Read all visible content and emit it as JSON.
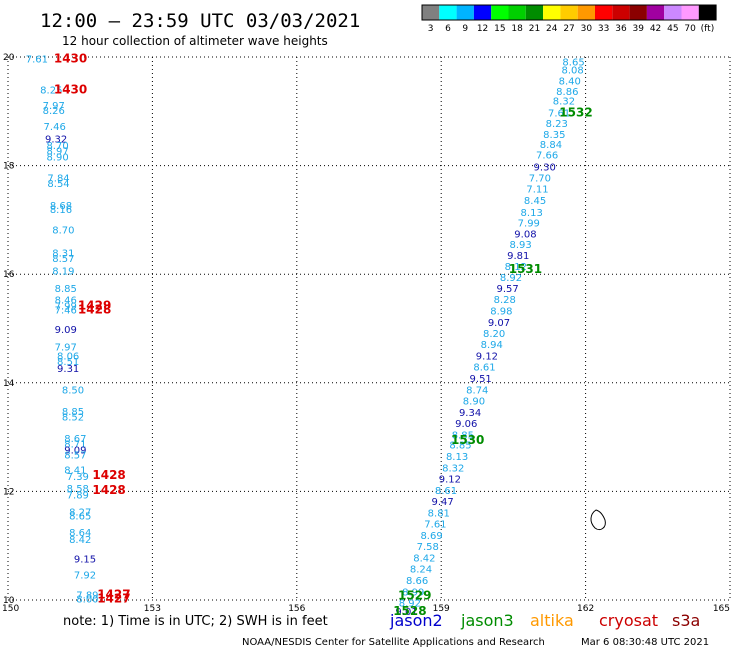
{
  "header": {
    "title": "12:00 – 23:59 UTC 03/03/2021",
    "subtitle": "12 hour collection of altimeter wave heights"
  },
  "legend": {
    "unit": "(ft)",
    "bins": [
      {
        "label": "3",
        "color": "#808080"
      },
      {
        "label": "6",
        "color": "#00ffff"
      },
      {
        "label": "9",
        "color": "#00b4ff"
      },
      {
        "label": "12",
        "color": "#0000ff"
      },
      {
        "label": "15",
        "color": "#00ff00"
      },
      {
        "label": "18",
        "color": "#00d000"
      },
      {
        "label": "21",
        "color": "#008c00"
      },
      {
        "label": "24",
        "color": "#ffff00"
      },
      {
        "label": "27",
        "color": "#ffcc00"
      },
      {
        "label": "30",
        "color": "#ff9900"
      },
      {
        "label": "33",
        "color": "#ff0000"
      },
      {
        "label": "36",
        "color": "#cc0000"
      },
      {
        "label": "39",
        "color": "#8b0000"
      },
      {
        "label": "42",
        "color": "#a000a0"
      },
      {
        "label": "45",
        "color": "#cc88ff"
      },
      {
        "label": "70",
        "color": "#ff99ff"
      },
      {
        "label": "",
        "color": "#000000"
      }
    ]
  },
  "footer": {
    "note": "note: 1) Time is in UTC; 2) SWH is in feet",
    "missions": [
      {
        "name": "jason2",
        "color": "#0000cc"
      },
      {
        "name": "jason3",
        "color": "#008c00"
      },
      {
        "name": "altika",
        "color": "#ff9900"
      },
      {
        "name": "cryosat",
        "color": "#cc0000"
      },
      {
        "name": "s3a",
        "color": "#8b0000"
      }
    ],
    "credit": "NOAA/NESDIS Center for Satellite Applications and Research",
    "timestamp": "Mar  6 08:30:48 UTC 2021"
  },
  "chart_data": {
    "type": "scatter",
    "xlim": [
      150,
      165
    ],
    "ylim": [
      10,
      20
    ],
    "x_ticks": [
      "150",
      "153",
      "156",
      "159",
      "162",
      "165"
    ],
    "y_ticks": [
      "10",
      "12",
      "14",
      "16",
      "18",
      "20"
    ],
    "grid": true,
    "colors": {
      "light": "#1ea8e8",
      "dark": "#1010a8",
      "jason3": "#008c00",
      "cryosat": "#dd0000"
    },
    "western_track": [
      {
        "x": 150.6,
        "y": 19.97,
        "v": "7.61",
        "c": "light"
      },
      {
        "x": 150.9,
        "y": 19.4,
        "v": "8.25",
        "c": "light"
      },
      {
        "x": 150.95,
        "y": 19.12,
        "v": "7.97",
        "c": "light"
      },
      {
        "x": 150.95,
        "y": 19.02,
        "v": "8.26",
        "c": "light"
      },
      {
        "x": 150.97,
        "y": 18.73,
        "v": "7.46",
        "c": "light"
      },
      {
        "x": 151.0,
        "y": 18.5,
        "v": "9.32",
        "c": "dark"
      },
      {
        "x": 151.03,
        "y": 18.38,
        "v": "8.70",
        "c": "light"
      },
      {
        "x": 151.03,
        "y": 18.28,
        "v": "8.97",
        "c": "light"
      },
      {
        "x": 151.03,
        "y": 18.17,
        "v": "8.90",
        "c": "light"
      },
      {
        "x": 151.05,
        "y": 17.78,
        "v": "7.84",
        "c": "light"
      },
      {
        "x": 151.05,
        "y": 17.68,
        "v": "8.54",
        "c": "light"
      },
      {
        "x": 151.1,
        "y": 17.27,
        "v": "8.68",
        "c": "light"
      },
      {
        "x": 151.1,
        "y": 17.2,
        "v": "8.16",
        "c": "light"
      },
      {
        "x": 151.15,
        "y": 16.82,
        "v": "8.70",
        "c": "light"
      },
      {
        "x": 151.15,
        "y": 16.4,
        "v": "8.31",
        "c": "light"
      },
      {
        "x": 151.15,
        "y": 16.3,
        "v": "8.57",
        "c": "light"
      },
      {
        "x": 151.15,
        "y": 16.07,
        "v": "8.19",
        "c": "light"
      },
      {
        "x": 151.2,
        "y": 15.75,
        "v": "8.85",
        "c": "light"
      },
      {
        "x": 151.2,
        "y": 15.53,
        "v": "8.46",
        "c": "light"
      },
      {
        "x": 151.2,
        "y": 15.42,
        "v": "7.99",
        "c": "light"
      },
      {
        "x": 151.2,
        "y": 15.35,
        "v": "7.46",
        "c": "light"
      },
      {
        "x": 151.2,
        "y": 14.99,
        "v": "9.09",
        "c": "dark"
      },
      {
        "x": 151.2,
        "y": 14.67,
        "v": "7.97",
        "c": "light"
      },
      {
        "x": 151.25,
        "y": 14.5,
        "v": "8.06",
        "c": "light"
      },
      {
        "x": 151.25,
        "y": 14.4,
        "v": "8.51",
        "c": "light"
      },
      {
        "x": 151.25,
        "y": 14.27,
        "v": "9.31",
        "c": "dark"
      },
      {
        "x": 151.35,
        "y": 13.88,
        "v": "8.50",
        "c": "light"
      },
      {
        "x": 151.35,
        "y": 13.48,
        "v": "8.85",
        "c": "light"
      },
      {
        "x": 151.35,
        "y": 13.38,
        "v": "8.52",
        "c": "light"
      },
      {
        "x": 151.4,
        "y": 12.98,
        "v": "8.67",
        "c": "light"
      },
      {
        "x": 151.4,
        "y": 12.88,
        "v": "8.71",
        "c": "light"
      },
      {
        "x": 151.4,
        "y": 12.77,
        "v": "9.09",
        "c": "dark"
      },
      {
        "x": 151.4,
        "y": 12.68,
        "v": "8.57",
        "c": "light"
      },
      {
        "x": 151.4,
        "y": 12.4,
        "v": "8.41",
        "c": "light"
      },
      {
        "x": 151.45,
        "y": 12.28,
        "v": "7.39",
        "c": "light"
      },
      {
        "x": 151.45,
        "y": 12.06,
        "v": "8.58",
        "c": "light"
      },
      {
        "x": 151.45,
        "y": 11.94,
        "v": "7.89",
        "c": "light"
      },
      {
        "x": 151.5,
        "y": 11.63,
        "v": "8.27",
        "c": "light"
      },
      {
        "x": 151.5,
        "y": 11.56,
        "v": "8.65",
        "c": "light"
      },
      {
        "x": 151.5,
        "y": 11.25,
        "v": "8.64",
        "c": "light"
      },
      {
        "x": 151.5,
        "y": 11.12,
        "v": "8.42",
        "c": "light"
      },
      {
        "x": 151.6,
        "y": 10.76,
        "v": "9.15",
        "c": "dark"
      },
      {
        "x": 151.6,
        "y": 10.47,
        "v": "7.92",
        "c": "light"
      },
      {
        "x": 151.65,
        "y": 10.1,
        "v": "7.89",
        "c": "light"
      },
      {
        "x": 151.65,
        "y": 10.03,
        "v": "8.00",
        "c": "light"
      }
    ],
    "eastern_track": [
      {
        "x": 161.75,
        "y": 19.92,
        "v": "8.65",
        "c": "light"
      },
      {
        "x": 161.73,
        "y": 19.77,
        "v": "8.08",
        "c": "light"
      },
      {
        "x": 161.67,
        "y": 19.57,
        "v": "8.40",
        "c": "light"
      },
      {
        "x": 161.62,
        "y": 19.37,
        "v": "8.86",
        "c": "light"
      },
      {
        "x": 161.55,
        "y": 19.2,
        "v": "8.32",
        "c": "light"
      },
      {
        "x": 161.45,
        "y": 18.98,
        "v": "7.61",
        "c": "light"
      },
      {
        "x": 161.4,
        "y": 18.78,
        "v": "8.23",
        "c": "light"
      },
      {
        "x": 161.35,
        "y": 18.58,
        "v": "8.35",
        "c": "light"
      },
      {
        "x": 161.28,
        "y": 18.4,
        "v": "8.84",
        "c": "light"
      },
      {
        "x": 161.2,
        "y": 18.2,
        "v": "7.66",
        "c": "light"
      },
      {
        "x": 161.15,
        "y": 17.98,
        "v": "9.30",
        "c": "dark"
      },
      {
        "x": 161.05,
        "y": 17.78,
        "v": "7.70",
        "c": "light"
      },
      {
        "x": 161.0,
        "y": 17.58,
        "v": "7.11",
        "c": "light"
      },
      {
        "x": 160.95,
        "y": 17.37,
        "v": "8.45",
        "c": "light"
      },
      {
        "x": 160.88,
        "y": 17.15,
        "v": "8.13",
        "c": "light"
      },
      {
        "x": 160.82,
        "y": 16.95,
        "v": "7.99",
        "c": "light"
      },
      {
        "x": 160.75,
        "y": 16.75,
        "v": "9.08",
        "c": "dark"
      },
      {
        "x": 160.65,
        "y": 16.56,
        "v": "8.93",
        "c": "light"
      },
      {
        "x": 160.6,
        "y": 16.35,
        "v": "9.81",
        "c": "dark"
      },
      {
        "x": 160.55,
        "y": 16.15,
        "v": "8.12",
        "c": "light"
      },
      {
        "x": 160.45,
        "y": 15.95,
        "v": "8.92",
        "c": "light"
      },
      {
        "x": 160.38,
        "y": 15.75,
        "v": "9.57",
        "c": "dark"
      },
      {
        "x": 160.32,
        "y": 15.54,
        "v": "8.28",
        "c": "light"
      },
      {
        "x": 160.25,
        "y": 15.33,
        "v": "8.98",
        "c": "light"
      },
      {
        "x": 160.2,
        "y": 15.12,
        "v": "9.07",
        "c": "dark"
      },
      {
        "x": 160.1,
        "y": 14.92,
        "v": "8.20",
        "c": "light"
      },
      {
        "x": 160.05,
        "y": 14.71,
        "v": "8.94",
        "c": "light"
      },
      {
        "x": 159.95,
        "y": 14.5,
        "v": "9.12",
        "c": "dark"
      },
      {
        "x": 159.9,
        "y": 14.3,
        "v": "8.61",
        "c": "light"
      },
      {
        "x": 159.82,
        "y": 14.09,
        "v": "9.51",
        "c": "dark"
      },
      {
        "x": 159.75,
        "y": 13.88,
        "v": "8.74",
        "c": "light"
      },
      {
        "x": 159.68,
        "y": 13.67,
        "v": "8.90",
        "c": "light"
      },
      {
        "x": 159.6,
        "y": 13.46,
        "v": "9.34",
        "c": "dark"
      },
      {
        "x": 159.52,
        "y": 13.26,
        "v": "9.06",
        "c": "dark"
      },
      {
        "x": 159.45,
        "y": 13.05,
        "v": "8.85",
        "c": "light"
      },
      {
        "x": 159.4,
        "y": 12.86,
        "v": "8.85",
        "c": "light"
      },
      {
        "x": 159.33,
        "y": 12.65,
        "v": "8.13",
        "c": "light"
      },
      {
        "x": 159.25,
        "y": 12.44,
        "v": "8.32",
        "c": "light"
      },
      {
        "x": 159.18,
        "y": 12.24,
        "v": "9.12",
        "c": "dark"
      },
      {
        "x": 159.1,
        "y": 12.03,
        "v": "8.61",
        "c": "light"
      },
      {
        "x": 159.03,
        "y": 11.82,
        "v": "9.47",
        "c": "dark"
      },
      {
        "x": 158.95,
        "y": 11.61,
        "v": "8.81",
        "c": "light"
      },
      {
        "x": 158.88,
        "y": 11.41,
        "v": "7.61",
        "c": "light"
      },
      {
        "x": 158.8,
        "y": 11.2,
        "v": "8.69",
        "c": "light"
      },
      {
        "x": 158.72,
        "y": 10.99,
        "v": "7.58",
        "c": "light"
      },
      {
        "x": 158.65,
        "y": 10.78,
        "v": "8.42",
        "c": "light"
      },
      {
        "x": 158.58,
        "y": 10.58,
        "v": "8.24",
        "c": "light"
      },
      {
        "x": 158.5,
        "y": 10.37,
        "v": "8.66",
        "c": "light"
      },
      {
        "x": 158.42,
        "y": 10.16,
        "v": "8.99",
        "c": "light"
      },
      {
        "x": 158.35,
        "y": 9.95,
        "v": "8.92",
        "c": "light"
      },
      {
        "x": 158.28,
        "y": 9.8,
        "v": "9.01",
        "c": "dark"
      }
    ],
    "pass_times": [
      {
        "x": 151.3,
        "y": 19.97,
        "v": "1430",
        "c": "cryosat"
      },
      {
        "x": 151.3,
        "y": 19.4,
        "v": "1430",
        "c": "cryosat"
      },
      {
        "x": 151.8,
        "y": 15.42,
        "v": "1429",
        "c": "cryosat"
      },
      {
        "x": 151.8,
        "y": 15.35,
        "v": "1428",
        "c": "cryosat"
      },
      {
        "x": 152.1,
        "y": 12.3,
        "v": "1428",
        "c": "cryosat"
      },
      {
        "x": 152.1,
        "y": 12.03,
        "v": "1428",
        "c": "cryosat"
      },
      {
        "x": 152.2,
        "y": 10.1,
        "v": "1427",
        "c": "cryosat"
      },
      {
        "x": 152.2,
        "y": 10.03,
        "v": "1427",
        "c": "cryosat"
      },
      {
        "x": 161.8,
        "y": 18.98,
        "v": "1532",
        "c": "jason3"
      },
      {
        "x": 160.75,
        "y": 16.1,
        "v": "1531",
        "c": "jason3"
      },
      {
        "x": 159.55,
        "y": 12.95,
        "v": "1530",
        "c": "jason3"
      },
      {
        "x": 158.45,
        "y": 10.08,
        "v": "1529",
        "c": "jason3"
      },
      {
        "x": 158.35,
        "y": 9.8,
        "v": "1528",
        "c": "jason3"
      }
    ]
  }
}
